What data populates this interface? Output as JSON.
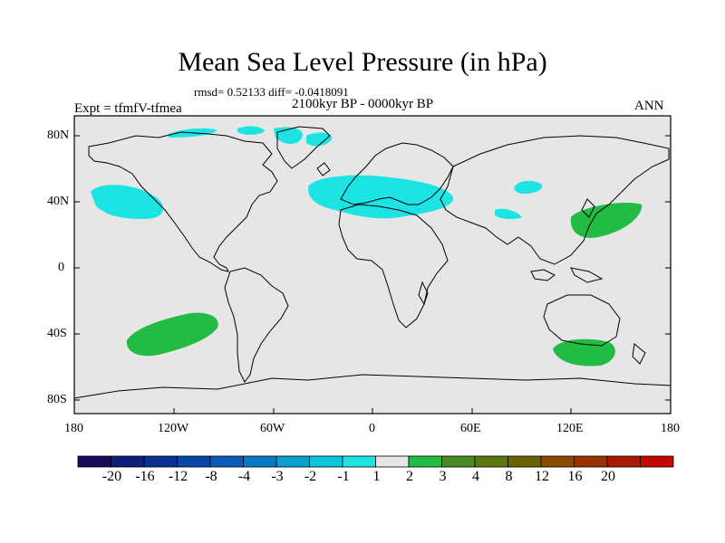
{
  "title": "Mean Sea Level Pressure (in hPa)",
  "stats": "rmsd= 0.52133 diff= -0.0418091",
  "period": "2100kyr BP - 0000kyr BP",
  "experiment": "Expt = tfmfV-tfmea",
  "season": "ANN",
  "lat_labels": [
    "80N",
    "40N",
    "0",
    "40S",
    "80S"
  ],
  "lon_labels": [
    "180",
    "120W",
    "60W",
    "0",
    "60E",
    "120E",
    "180"
  ],
  "colorbar": {
    "labels": [
      "-20",
      "-16",
      "-12",
      "-8",
      "-4",
      "-3",
      "-2",
      "-1",
      "1",
      "2",
      "3",
      "4",
      "8",
      "12",
      "16",
      "20"
    ],
    "colors": [
      "#1a0a5c",
      "#0d1f7a",
      "#0b2f94",
      "#0a45a8",
      "#0a5bb8",
      "#0a79c4",
      "#0a9fd0",
      "#0dc6dc",
      "#1ee3e3",
      "#e6e6e6",
      "#22bb44",
      "#4a8a22",
      "#5a7a10",
      "#6a6200",
      "#8a4a00",
      "#9a3200",
      "#aa1a00",
      "#c40a00"
    ]
  },
  "colors": {
    "background_field": "#e6e6e6",
    "negative_anomaly": "#1ee3e3",
    "positive_anomaly": "#22bb44",
    "coastline": "#000000"
  }
}
